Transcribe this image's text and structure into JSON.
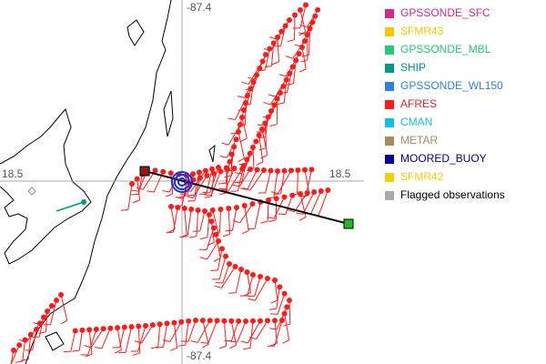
{
  "map": {
    "lon_label_top": "-87.4",
    "lon_label_bottom": "-87.4",
    "lat_label_left": "18.5",
    "lat_label_right": "18.5"
  },
  "legend": [
    {
      "label": "GPSSONDE_SFC",
      "color": "#d8258c",
      "text_color": "#d8258c"
    },
    {
      "label": "SFMR43",
      "color": "#f5c800",
      "text_color": "#f5c800"
    },
    {
      "label": "GPSSONDE_MBL",
      "color": "#22cc77",
      "text_color": "#22cc77"
    },
    {
      "label": "SHIP",
      "color": "#009988",
      "text_color": "#009988"
    },
    {
      "label": "GPSSONDE_WL150",
      "color": "#2f7fe0",
      "text_color": "#2f7fe0"
    },
    {
      "label": "AFRES",
      "color": "#ff1a1a",
      "text_color": "#ff1a1a"
    },
    {
      "label": "CMAN",
      "color": "#15bde8",
      "text_color": "#15bde8"
    },
    {
      "label": "METAR",
      "color": "#a68a62",
      "text_color": "#a68a62"
    },
    {
      "label": "MOORED_BUOY",
      "color": "#000099",
      "text_color": "#000099"
    },
    {
      "label": "SFMR42",
      "color": "#f0d000",
      "text_color": "#f0d000"
    },
    {
      "label": "Flagged observations",
      "color": "#aaaaaa",
      "text_color": "#000000"
    }
  ]
}
